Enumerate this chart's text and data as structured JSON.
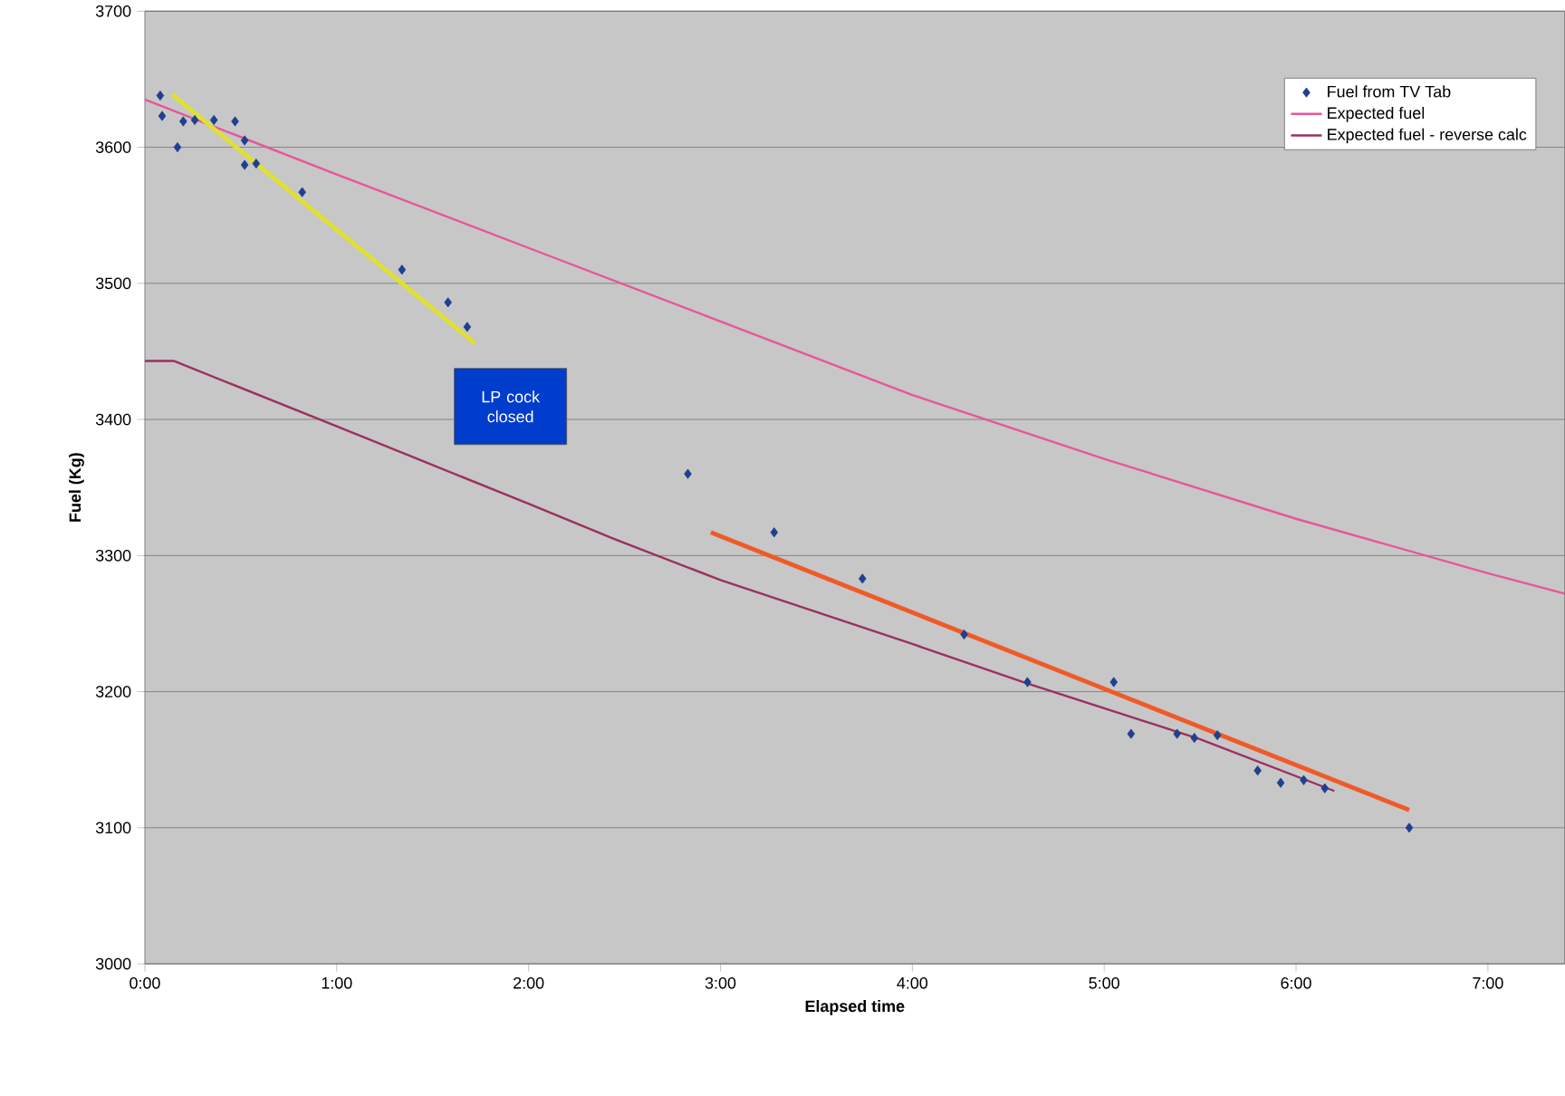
{
  "chart_data": {
    "type": "scatter",
    "xlabel": "Elapsed time",
    "ylabel": "Fuel (Kg)",
    "xlim": [
      0,
      7.4
    ],
    "ylim": [
      3000,
      3700
    ],
    "xticks": [
      {
        "value": 0,
        "label": "0:00"
      },
      {
        "value": 1,
        "label": "1:00"
      },
      {
        "value": 2,
        "label": "2:00"
      },
      {
        "value": 3,
        "label": "3:00"
      },
      {
        "value": 4,
        "label": "4:00"
      },
      {
        "value": 5,
        "label": "5:00"
      },
      {
        "value": 6,
        "label": "6:00"
      },
      {
        "value": 7,
        "label": "7:00"
      }
    ],
    "yticks": [
      3000,
      3100,
      3200,
      3300,
      3400,
      3500,
      3600,
      3700
    ],
    "grid": "y",
    "legend": "top right",
    "annotations": [
      "LP cock closed"
    ],
    "series": [
      {
        "name": "Fuel from TV Tab",
        "marker": "diamond",
        "color": "#1f3f8f",
        "x": [
          0.08,
          0.09,
          0.17,
          0.2,
          0.26,
          0.36,
          0.47,
          0.52,
          0.52,
          0.58,
          0.82,
          1.34,
          1.58,
          1.68,
          2.83,
          3.28,
          3.74,
          4.27,
          4.6,
          5.05,
          5.14,
          5.38,
          5.47,
          5.59,
          5.8,
          5.92,
          6.04,
          6.15,
          6.59
        ],
        "values": [
          3638,
          3623,
          3600,
          3619,
          3620,
          3620,
          3619,
          3605,
          3587,
          3588,
          3567,
          3510,
          3486,
          3468,
          3360,
          3317,
          3283,
          3242,
          3207,
          3207,
          3169,
          3169,
          3166,
          3168,
          3142,
          3133,
          3135,
          3129,
          3100
        ]
      },
      {
        "name": "Expected fuel",
        "type": "line",
        "color": "#e8559a",
        "x": [
          0,
          1,
          2,
          3,
          4,
          5,
          6,
          7,
          7.4
        ],
        "values": [
          3635,
          3580,
          3526,
          3472,
          3418,
          3371,
          3327,
          3287,
          3272
        ]
      },
      {
        "name": "Expected fuel - reverse calc",
        "type": "line",
        "color": "#9b3060",
        "x": [
          0,
          0.15,
          1,
          2,
          2.45,
          3,
          4,
          4.6,
          5.5,
          6.2
        ],
        "values": [
          3443,
          3443,
          3395,
          3338,
          3312,
          3282,
          3235,
          3206,
          3165,
          3127
        ]
      },
      {
        "type": "line",
        "color": "#e0e030",
        "x": [
          0.14,
          1.72
        ],
        "values": [
          3639,
          3456
        ]
      },
      {
        "type": "line",
        "color": "#f05a28",
        "x": [
          2.95,
          6.59
        ],
        "values": [
          3317,
          3113
        ]
      }
    ]
  }
}
